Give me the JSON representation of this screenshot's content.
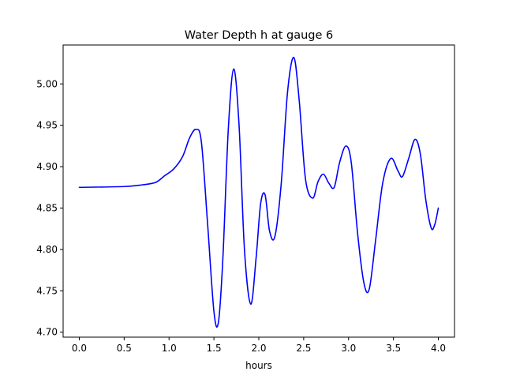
{
  "chart_data": {
    "type": "line",
    "title": "Water Depth h at gauge 6",
    "xlabel": "hours",
    "ylabel": "",
    "xlim": [
      -0.18,
      4.18
    ],
    "ylim": [
      4.694,
      5.047
    ],
    "grid": false,
    "x_ticks": [
      {
        "value": 0.0,
        "label": "0.0"
      },
      {
        "value": 0.5,
        "label": "0.5"
      },
      {
        "value": 1.0,
        "label": "1.0"
      },
      {
        "value": 1.5,
        "label": "1.5"
      },
      {
        "value": 2.0,
        "label": "2.0"
      },
      {
        "value": 2.5,
        "label": "2.5"
      },
      {
        "value": 3.0,
        "label": "3.0"
      },
      {
        "value": 3.5,
        "label": "3.5"
      },
      {
        "value": 4.0,
        "label": "4.0"
      }
    ],
    "y_ticks": [
      {
        "value": 4.7,
        "label": "4.70"
      },
      {
        "value": 4.75,
        "label": "4.75"
      },
      {
        "value": 4.8,
        "label": "4.80"
      },
      {
        "value": 4.85,
        "label": "4.85"
      },
      {
        "value": 4.9,
        "label": "4.90"
      },
      {
        "value": 4.95,
        "label": "4.95"
      },
      {
        "value": 5.0,
        "label": "5.00"
      }
    ],
    "series": [
      {
        "color": "#0000ff",
        "x": [
          0.0,
          0.5,
          0.7,
          0.85,
          0.95,
          1.05,
          1.15,
          1.23,
          1.3,
          1.36,
          1.43,
          1.5,
          1.55,
          1.6,
          1.66,
          1.72,
          1.78,
          1.84,
          1.91,
          1.97,
          2.02,
          2.07,
          2.12,
          2.18,
          2.25,
          2.32,
          2.39,
          2.45,
          2.52,
          2.6,
          2.66,
          2.72,
          2.78,
          2.84,
          2.9,
          2.97,
          3.03,
          3.1,
          3.17,
          3.23,
          3.3,
          3.38,
          3.47,
          3.55,
          3.6,
          3.67,
          3.74,
          3.8,
          3.86,
          3.92,
          3.96,
          4.0
        ],
        "y": [
          4.875,
          4.876,
          4.878,
          4.881,
          4.889,
          4.897,
          4.912,
          4.935,
          4.945,
          4.93,
          4.83,
          4.725,
          4.712,
          4.79,
          4.945,
          5.018,
          4.95,
          4.8,
          4.734,
          4.79,
          4.855,
          4.866,
          4.822,
          4.816,
          4.88,
          4.99,
          5.032,
          4.98,
          4.885,
          4.862,
          4.882,
          4.891,
          4.88,
          4.875,
          4.905,
          4.925,
          4.905,
          4.82,
          4.76,
          4.752,
          4.81,
          4.88,
          4.91,
          4.895,
          4.888,
          4.91,
          4.933,
          4.915,
          4.86,
          4.826,
          4.83,
          4.85
        ]
      }
    ]
  }
}
